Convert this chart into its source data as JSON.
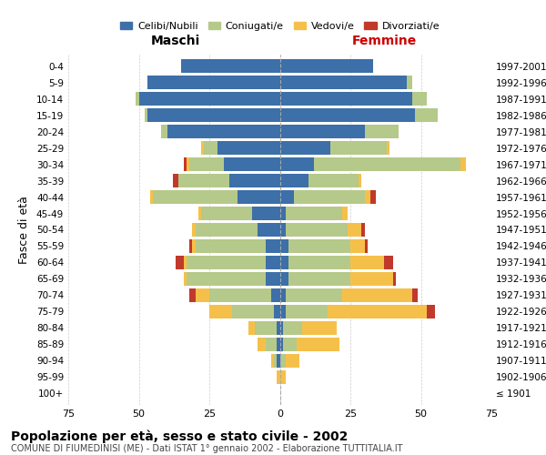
{
  "age_groups": [
    "100+",
    "95-99",
    "90-94",
    "85-89",
    "80-84",
    "75-79",
    "70-74",
    "65-69",
    "60-64",
    "55-59",
    "50-54",
    "45-49",
    "40-44",
    "35-39",
    "30-34",
    "25-29",
    "20-24",
    "15-19",
    "10-14",
    "5-9",
    "0-4"
  ],
  "birth_years": [
    "≤ 1901",
    "1902-1906",
    "1907-1911",
    "1912-1916",
    "1917-1921",
    "1922-1926",
    "1927-1931",
    "1932-1936",
    "1937-1941",
    "1942-1946",
    "1947-1951",
    "1952-1956",
    "1957-1961",
    "1962-1966",
    "1967-1971",
    "1972-1976",
    "1977-1981",
    "1982-1986",
    "1987-1991",
    "1992-1996",
    "1997-2001"
  ],
  "male": {
    "celibi": [
      0,
      0,
      1,
      1,
      1,
      2,
      3,
      5,
      5,
      5,
      8,
      10,
      15,
      18,
      20,
      22,
      40,
      47,
      50,
      47,
      35
    ],
    "coniugati": [
      0,
      0,
      1,
      4,
      8,
      15,
      22,
      28,
      28,
      25,
      22,
      18,
      30,
      18,
      12,
      5,
      2,
      1,
      1,
      0,
      0
    ],
    "vedovi": [
      0,
      1,
      1,
      3,
      2,
      8,
      5,
      1,
      1,
      1,
      1,
      1,
      1,
      0,
      1,
      1,
      0,
      0,
      0,
      0,
      0
    ],
    "divorziati": [
      0,
      0,
      0,
      0,
      0,
      0,
      2,
      0,
      3,
      1,
      0,
      0,
      0,
      2,
      1,
      0,
      0,
      0,
      0,
      0,
      0
    ]
  },
  "female": {
    "nubili": [
      0,
      0,
      0,
      1,
      1,
      2,
      2,
      3,
      3,
      3,
      2,
      2,
      5,
      10,
      12,
      18,
      30,
      48,
      47,
      45,
      33
    ],
    "coniugate": [
      0,
      0,
      2,
      5,
      7,
      15,
      20,
      22,
      22,
      22,
      22,
      20,
      25,
      18,
      52,
      20,
      12,
      8,
      5,
      2,
      0
    ],
    "vedove": [
      0,
      2,
      5,
      15,
      12,
      35,
      25,
      15,
      12,
      5,
      5,
      2,
      2,
      1,
      2,
      1,
      0,
      0,
      0,
      0,
      0
    ],
    "divorziate": [
      0,
      0,
      0,
      0,
      0,
      3,
      2,
      1,
      3,
      1,
      1,
      0,
      2,
      0,
      0,
      0,
      0,
      0,
      0,
      0,
      0
    ]
  },
  "colors": {
    "celibi": "#3d6fa8",
    "coniugati": "#b5c98a",
    "vedovi": "#f5c04a",
    "divorziati": "#c0392b"
  },
  "xlim": 75,
  "title": "Popolazione per età, sesso e stato civile - 2002",
  "subtitle": "COMUNE DI FIUMEDINISI (ME) - Dati ISTAT 1° gennaio 2002 - Elaborazione TUTTITALIA.IT",
  "ylabel_left": "Fasce di età",
  "xlabel_male": "Maschi",
  "xlabel_female": "Femmine",
  "legend_labels": [
    "Celibi/Nubili",
    "Coniugati/e",
    "Vedovi/e",
    "Divorziati/e"
  ],
  "bg_color": "#f5f5f5",
  "grid_color": "#cccccc"
}
